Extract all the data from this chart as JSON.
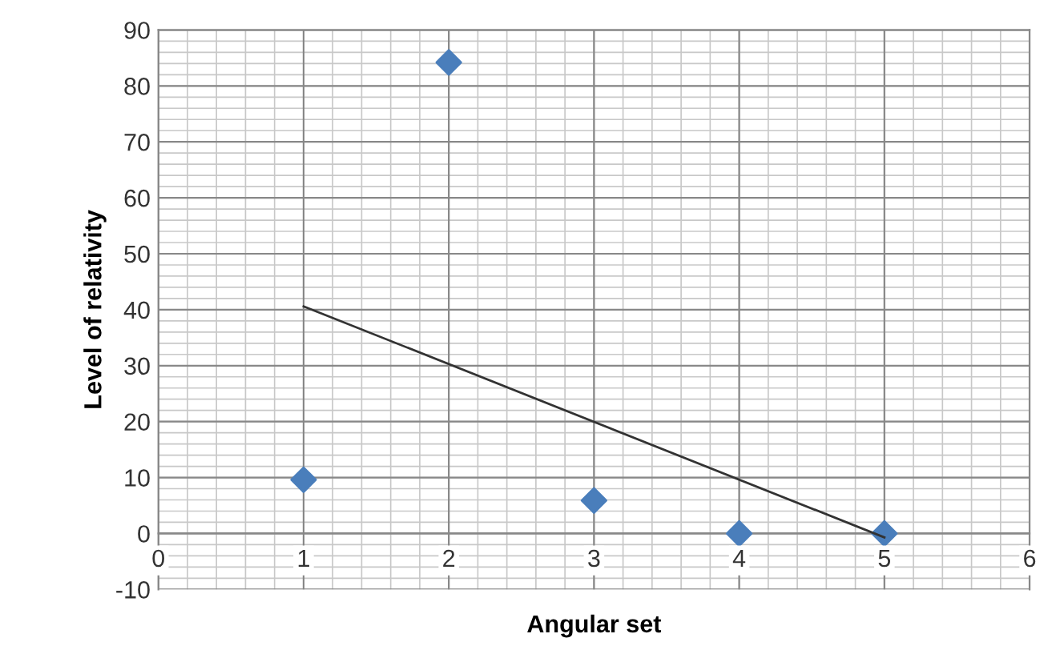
{
  "chart_data": {
    "type": "scatter",
    "xlabel": "Angular set",
    "ylabel": "Level of relativity",
    "series": [
      {
        "type": "scatter",
        "color": "#4a7ebb",
        "x": [
          1,
          2,
          3,
          4,
          5
        ],
        "values": [
          9.6,
          84.2,
          5.9,
          0,
          0
        ],
        "marker": "diamond"
      },
      {
        "type": "line",
        "color": "#333333",
        "x": [
          1,
          5
        ],
        "values": [
          40.6,
          -0.7
        ],
        "marker": "none",
        "line_style": "solid"
      }
    ],
    "xlim": [
      0,
      6
    ],
    "xticks": [
      0,
      1,
      2,
      3,
      4,
      5,
      6
    ],
    "ylim": [
      -10,
      90
    ],
    "yticks": [
      -10,
      0,
      10,
      20,
      30,
      40,
      50,
      60,
      70,
      80,
      90
    ],
    "grid": true,
    "legend": false
  }
}
